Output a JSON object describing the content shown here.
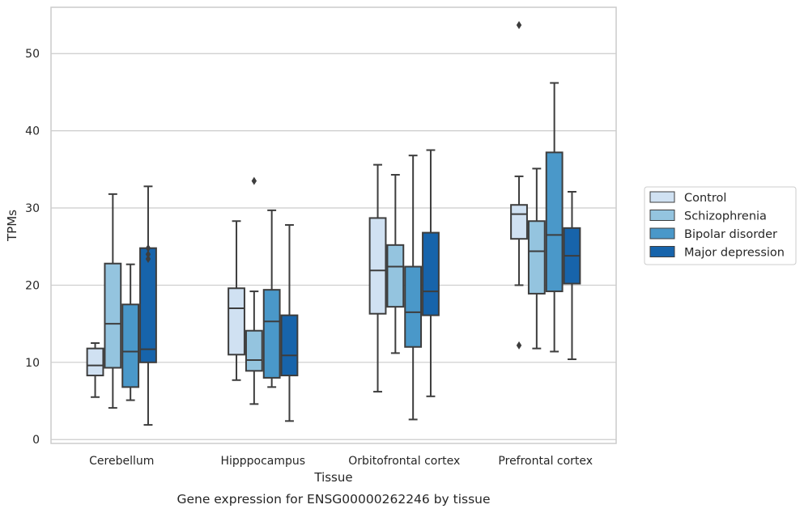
{
  "chart_data": {
    "type": "box",
    "title": "",
    "caption": "Gene expression for ENSG00000262246 by tissue",
    "xlabel": "Tissue",
    "ylabel": "TPMs",
    "ylim": [
      -0.5,
      56
    ],
    "yticks": [
      0,
      10,
      20,
      30,
      40,
      50
    ],
    "grid": "horizontal",
    "legend_position": "right",
    "categories": [
      "Cerebellum",
      "Hipppocampus",
      "Orbitofrontal cortex",
      "Prefrontal cortex"
    ],
    "series": [
      {
        "name": "Control",
        "color": "#d0e1f2",
        "boxes": [
          {
            "whislo": 5.5,
            "q1": 8.3,
            "med": 9.6,
            "q3": 11.8,
            "whishi": 12.5,
            "fliers": []
          },
          {
            "whislo": 7.7,
            "q1": 11.0,
            "med": 17.0,
            "q3": 19.6,
            "whishi": 28.3,
            "fliers": []
          },
          {
            "whislo": 6.2,
            "q1": 16.3,
            "med": 21.9,
            "q3": 28.7,
            "whishi": 35.6,
            "fliers": []
          },
          {
            "whislo": 20.0,
            "q1": 26.0,
            "med": 29.2,
            "q3": 30.4,
            "whishi": 34.1,
            "fliers": [
              12.2,
              53.7
            ]
          }
        ]
      },
      {
        "name": "Schizophrenia",
        "color": "#94c4df",
        "boxes": [
          {
            "whislo": 4.1,
            "q1": 9.3,
            "med": 15.0,
            "q3": 22.8,
            "whishi": 31.8,
            "fliers": []
          },
          {
            "whislo": 4.6,
            "q1": 8.9,
            "med": 10.3,
            "q3": 14.1,
            "whishi": 19.2,
            "fliers": [
              33.5
            ]
          },
          {
            "whislo": 11.2,
            "q1": 17.2,
            "med": 22.4,
            "q3": 25.2,
            "whishi": 34.3,
            "fliers": []
          },
          {
            "whislo": 11.8,
            "q1": 18.9,
            "med": 24.4,
            "q3": 28.3,
            "whishi": 35.1,
            "fliers": []
          }
        ]
      },
      {
        "name": "Bipolar disorder",
        "color": "#4a98c9",
        "boxes": [
          {
            "whislo": 5.1,
            "q1": 6.8,
            "med": 11.4,
            "q3": 17.5,
            "whishi": 22.7,
            "fliers": []
          },
          {
            "whislo": 6.8,
            "q1": 8.0,
            "med": 15.3,
            "q3": 19.4,
            "whishi": 29.7,
            "fliers": []
          },
          {
            "whislo": 2.6,
            "q1": 12.0,
            "med": 16.5,
            "q3": 22.4,
            "whishi": 36.8,
            "fliers": []
          },
          {
            "whislo": 11.4,
            "q1": 19.2,
            "med": 26.5,
            "q3": 37.2,
            "whishi": 46.2,
            "fliers": []
          }
        ]
      },
      {
        "name": "Major depression",
        "color": "#1764ab",
        "boxes": [
          {
            "whislo": 1.9,
            "q1": 10.0,
            "med": 11.7,
            "q3": 24.8,
            "whishi": 32.8,
            "fliers": [
              23.4,
              24.0,
              24.8
            ]
          },
          {
            "whislo": 2.4,
            "q1": 8.3,
            "med": 10.9,
            "q3": 16.1,
            "whishi": 27.8,
            "fliers": []
          },
          {
            "whislo": 5.6,
            "q1": 16.1,
            "med": 19.2,
            "q3": 26.8,
            "whishi": 37.5,
            "fliers": []
          },
          {
            "whislo": 10.4,
            "q1": 20.2,
            "med": 23.8,
            "q3": 27.4,
            "whishi": 32.1,
            "fliers": []
          }
        ]
      }
    ]
  }
}
